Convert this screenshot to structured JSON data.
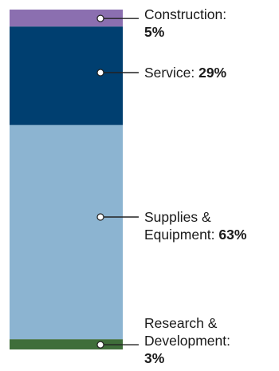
{
  "chart_data": {
    "type": "bar",
    "orientation": "stacked-vertical",
    "unit": "%",
    "segments": [
      {
        "name": "Construction",
        "label_lines": [
          "Construction:"
        ],
        "value": 5,
        "value_text": "5%",
        "value_on_new_line": true,
        "color": "#8b6fb0"
      },
      {
        "name": "Service",
        "label_lines": [
          "Service:"
        ],
        "value": 29,
        "value_text": "29%",
        "value_on_new_line": false,
        "color": "#003f70"
      },
      {
        "name": "Supplies & Equipment",
        "label_lines": [
          "Supplies &",
          "Equipment:"
        ],
        "value": 63,
        "value_text": "63%",
        "value_on_new_line": false,
        "color": "#8cb4d1"
      },
      {
        "name": "Research & Development",
        "label_lines": [
          "Research &",
          "Development:"
        ],
        "value": 3,
        "value_text": "3%",
        "value_on_new_line": true,
        "color": "#3f6e3a"
      }
    ],
    "legend": "callout labels at right"
  }
}
